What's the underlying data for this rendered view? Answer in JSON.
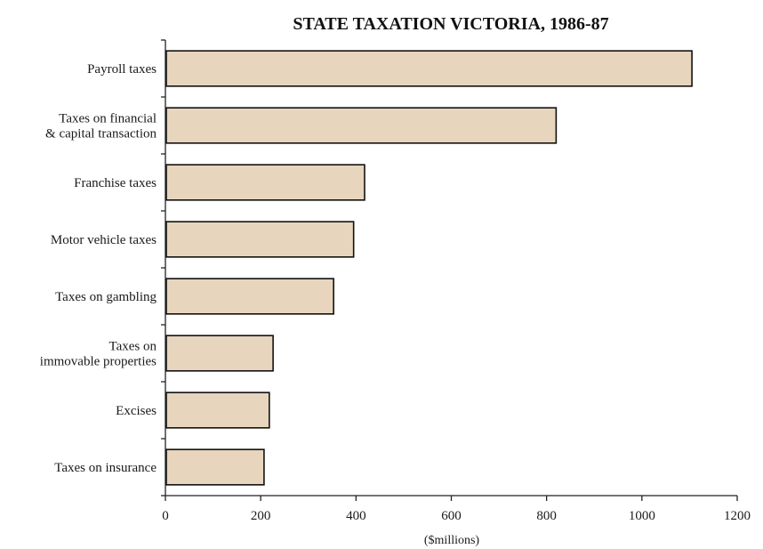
{
  "chart_data": {
    "type": "bar",
    "orientation": "horizontal",
    "title": "STATE TAXATION VICTORIA, 1986-87",
    "xlabel": "($millions)",
    "ylabel": "",
    "categories": [
      [
        "Payroll taxes"
      ],
      [
        "Taxes on financial",
        "& capital transaction"
      ],
      [
        "Franchise taxes"
      ],
      [
        "Motor vehicle taxes"
      ],
      [
        "Taxes on gambling"
      ],
      [
        "Taxes on",
        "immovable properties"
      ],
      [
        "Excises"
      ],
      [
        "Taxes on insurance"
      ]
    ],
    "values": [
      1105,
      820,
      418,
      395,
      353,
      226,
      218,
      207
    ],
    "xlim": [
      0,
      1200
    ],
    "xticks": [
      "0",
      "200",
      "400",
      "600",
      "800",
      "1000",
      "1200"
    ],
    "grid": false,
    "bar_color": "#e8d5bd",
    "bar_edge_color": "#111111"
  }
}
